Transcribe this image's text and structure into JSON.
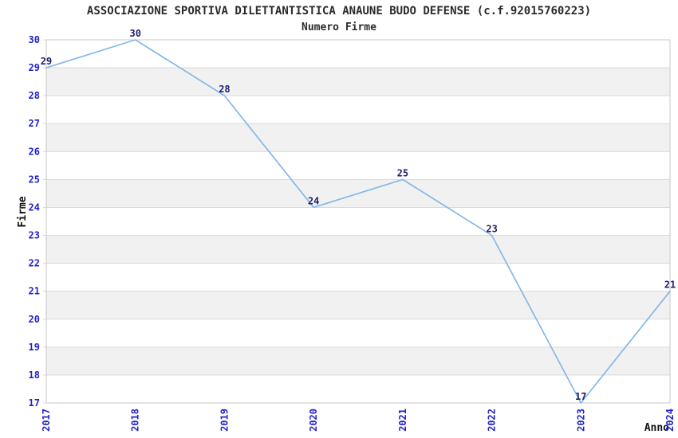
{
  "chart_data": {
    "type": "line",
    "title": "ASSOCIAZIONE SPORTIVA DILETTANTISTICA ANAUNE BUDO DEFENSE (c.f.92015760223)",
    "subtitle": "Numero Firme",
    "xlabel": "Anno",
    "ylabel": "Firme",
    "x": [
      "2017",
      "2018",
      "2019",
      "2020",
      "2021",
      "2022",
      "2023",
      "2024"
    ],
    "values": [
      29,
      30,
      28,
      24,
      25,
      23,
      17,
      21
    ],
    "ylim": [
      17,
      30
    ],
    "y_tick_step": 1,
    "grid": true,
    "legend": false,
    "alternating_bands": true,
    "colors": {
      "line": "#85b7e8",
      "tick_label": "#2222cc",
      "data_label": "#1f1f6e",
      "grid": "#d9d9d9",
      "band": "#f1f1f1",
      "border": "#c9c9c9",
      "title": "#2b2b2b",
      "axis_title": "#111111"
    }
  }
}
